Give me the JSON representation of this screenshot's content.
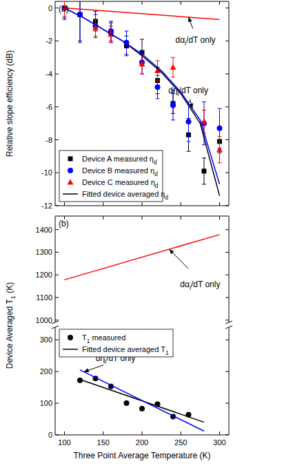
{
  "chart_data": [
    {
      "type": "line",
      "title": "(a)",
      "y_label": "Relative slope efficiency (dB)",
      "xlim": [
        88,
        312
      ],
      "xticks": [
        100,
        150,
        200,
        250,
        300
      ],
      "ylim": [
        -12,
        0.4
      ],
      "yticks": [
        0,
        -2,
        -4,
        -6,
        -8,
        -10,
        -12
      ],
      "tick_labels": "y",
      "legend": "lower left",
      "series": [
        {
          "name": "Device A measured ηd",
          "type": "scatter",
          "marker": "square",
          "color": "#000000",
          "x": [
            100,
            120,
            140,
            160,
            180,
            200,
            220,
            240,
            260,
            280,
            300
          ],
          "values": [
            0,
            -0.4,
            -0.8,
            -1.5,
            -2.3,
            -2.7,
            -4.4,
            -5.8,
            -7.7,
            -9.9,
            -8.1
          ],
          "errors": [
            0.6,
            1.6,
            0.6,
            0.6,
            0.6,
            0.8,
            0.8,
            0.6,
            1.0,
            0.8,
            0.7
          ]
        },
        {
          "name": "Device B measured ηd",
          "type": "scatter",
          "marker": "circle",
          "color": "#0000ff",
          "x": [
            100,
            120,
            140,
            160,
            180,
            200,
            220,
            240,
            260,
            280,
            300
          ],
          "values": [
            0,
            -0.4,
            -1.1,
            -1.4,
            -2.1,
            -3.3,
            -4.8,
            -5.9,
            -6.9,
            -7.0,
            -7.3
          ],
          "errors": [
            0.7,
            1.7,
            0.7,
            0.6,
            0.7,
            0.7,
            0.7,
            0.9,
            1.2,
            1.3,
            1.2
          ]
        },
        {
          "name": "Device C measured ηd",
          "type": "scatter",
          "marker": "triangle",
          "color": "#ff0000",
          "x": [
            100,
            140,
            160,
            200,
            220,
            240,
            280,
            300
          ],
          "values": [
            0,
            -1.2,
            -1.6,
            -3.4,
            -3.8,
            -3.6,
            -6.9,
            -8.6
          ],
          "errors": [
            0.5,
            0.5,
            0.5,
            0.6,
            0.6,
            0.6,
            0.7,
            0.8
          ]
        },
        {
          "name": "Fitted device averaged ηd",
          "type": "line",
          "color": "#000000",
          "x": [
            100,
            125,
            150,
            175,
            200,
            225,
            250,
            275,
            300
          ],
          "values": [
            0,
            -0.6,
            -1.3,
            -2.0,
            -2.9,
            -3.9,
            -5.2,
            -7.0,
            -11.4
          ]
        },
        {
          "type": "line",
          "color": "#0000ff",
          "x": [
            100,
            125,
            150,
            175,
            200,
            225,
            250,
            275,
            300
          ],
          "values": [
            0,
            -0.6,
            -1.3,
            -2.0,
            -2.8,
            -3.8,
            -5.1,
            -6.8,
            -10.7
          ]
        },
        {
          "type": "line",
          "color": "#ff0000",
          "x": [
            100,
            300
          ],
          "values": [
            0,
            -0.7
          ]
        }
      ],
      "annotations": [
        {
          "text": "dαi/dT only",
          "x": 260,
          "y": -0.55
        },
        {
          "text": "dηi/dT only",
          "x": 265,
          "y": -6.1
        }
      ]
    },
    {
      "type": "line",
      "title": "(b)",
      "xlim": [
        88,
        312
      ],
      "xticks": [
        100,
        150,
        200,
        250,
        300
      ],
      "ylim": [
        990,
        1460
      ],
      "yticks": [
        1000,
        1100,
        1200,
        1300,
        1400
      ],
      "tick_labels": "y",
      "series": [
        {
          "type": "line",
          "color": "#ff0000",
          "x": [
            100,
            300
          ],
          "values": [
            1178,
            1378
          ]
        }
      ],
      "annotations": [
        {
          "text": "dαi/dT only",
          "x": 235,
          "y": 1313
        }
      ]
    },
    {
      "type": "line",
      "x_label": "Three Point Average Temperature (K)",
      "y_label": "Device Averaged T1 (K)",
      "xlim": [
        88,
        312
      ],
      "xticks": [
        100,
        150,
        200,
        250,
        300
      ],
      "ylim": [
        0,
        340
      ],
      "yticks": [
        0,
        100,
        200,
        300
      ],
      "legend": "upper left",
      "series": [
        {
          "name": "T1 measured",
          "type": "scatter",
          "marker": "circle",
          "color": "#000000",
          "x": [
            120,
            140,
            160,
            180,
            200,
            220,
            240,
            260
          ],
          "values": [
            172,
            178,
            153,
            100,
            83,
            97,
            58,
            64
          ]
        },
        {
          "name": "Fitted device averaged T1",
          "type": "line",
          "color": "#000000",
          "x": [
            120,
            280
          ],
          "values": [
            175,
            40
          ]
        },
        {
          "type": "line",
          "color": "#0000ff",
          "x": [
            120,
            280
          ],
          "values": [
            205,
            12
          ]
        }
      ],
      "annotations": [
        {
          "text": "dηi/dT only",
          "x": 125,
          "y": 199
        }
      ]
    }
  ]
}
